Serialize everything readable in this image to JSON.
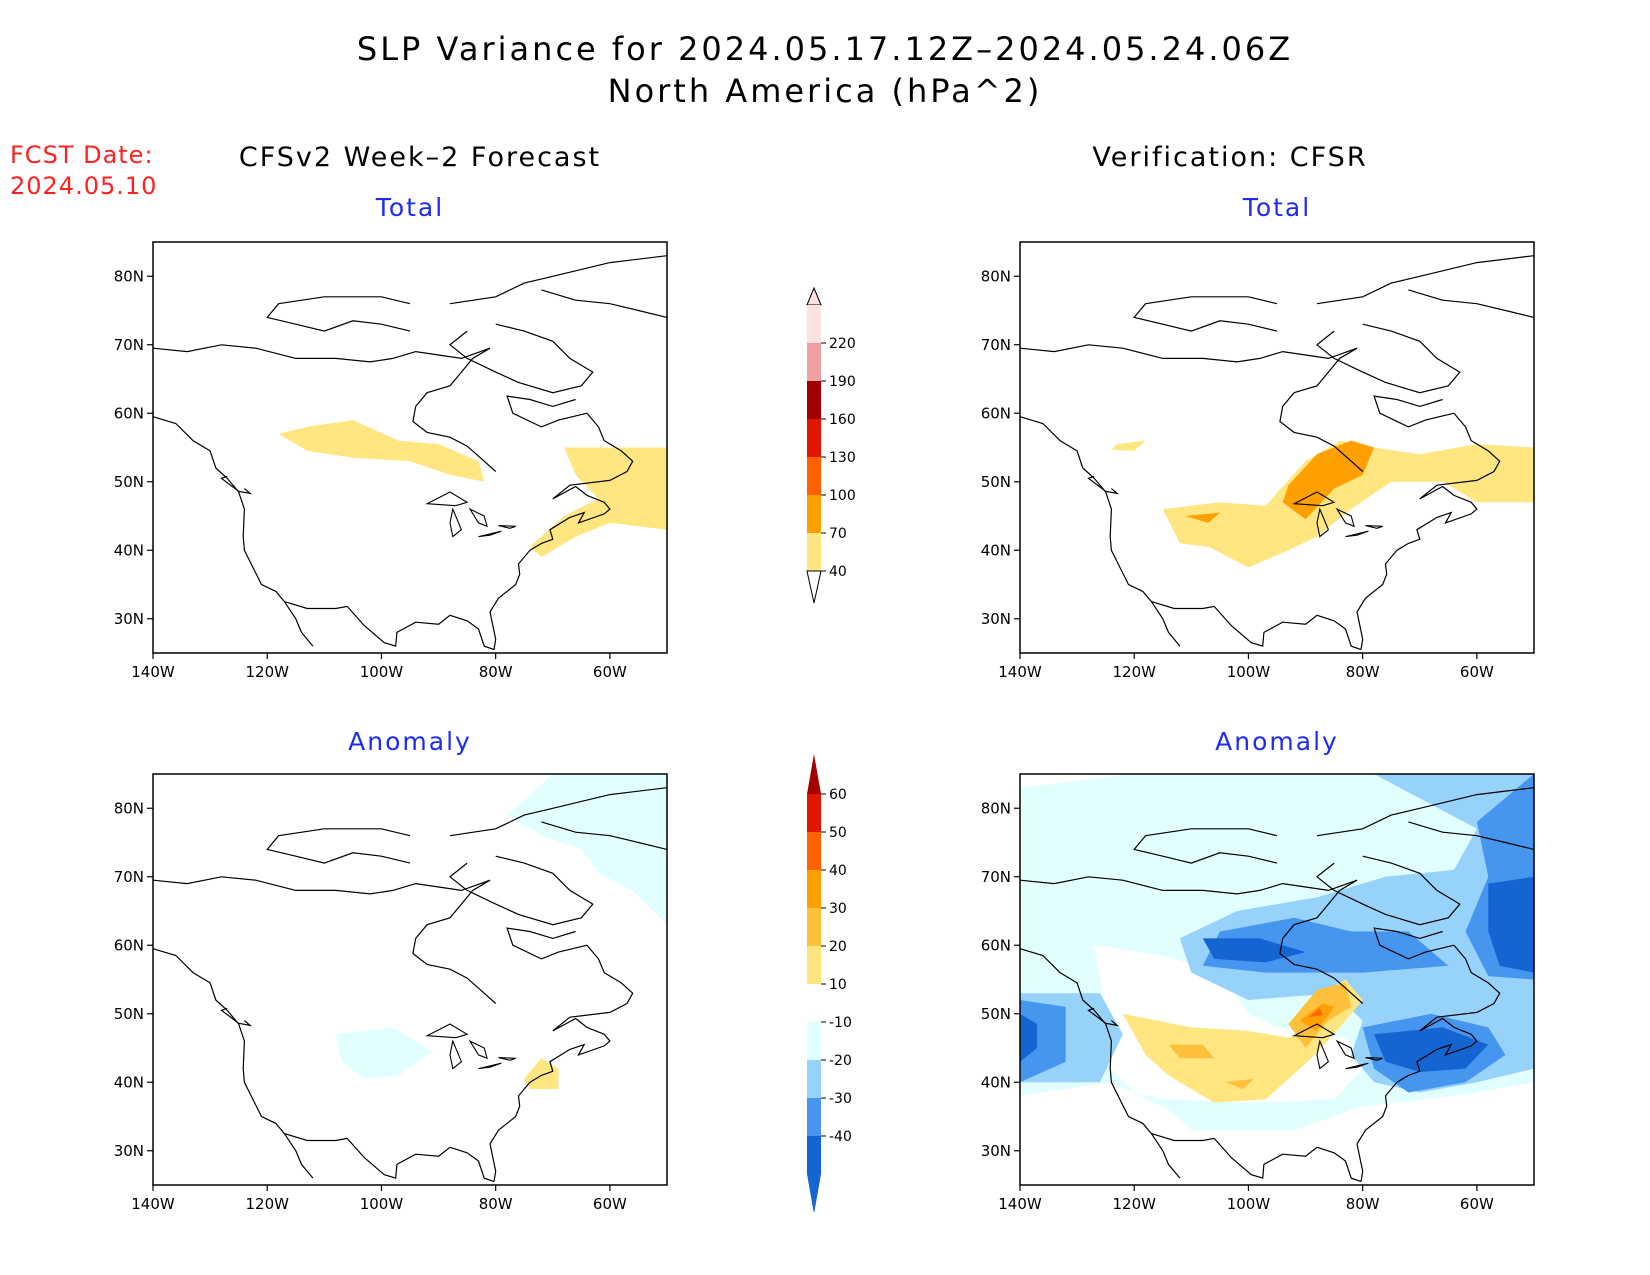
{
  "title": {
    "line1": "SLP Variance for 2024.05.17.12Z–2024.05.24.06Z",
    "line2": "North America (hPa^2)"
  },
  "fcst_date": {
    "label": "FCST Date:",
    "value": "2024.05.10"
  },
  "columns": {
    "left": "CFSv2 Week–2 Forecast",
    "right": "Verification: CFSR"
  },
  "panels": {
    "total": "Total",
    "anomaly": "Anomaly"
  },
  "axes": {
    "lat_labels": [
      "80N",
      "70N",
      "60N",
      "50N",
      "40N",
      "30N"
    ],
    "lon_labels": [
      "140W",
      "120W",
      "100W",
      "80W",
      "60W"
    ],
    "lat_range": [
      25,
      85
    ],
    "lon_range": [
      -140,
      -50
    ]
  },
  "legend_total": {
    "levels": [
      "40",
      "70",
      "100",
      "130",
      "160",
      "190",
      "220"
    ],
    "colors": [
      "#ffe680",
      "#ffa000",
      "#ff6000",
      "#e11600",
      "#a50000",
      "#f0a0a0",
      "#fde0e0"
    ]
  },
  "legend_anomaly": {
    "levels": [
      "-40",
      "-30",
      "-20",
      "-10",
      "10",
      "20",
      "30",
      "40",
      "50",
      "60"
    ],
    "colors": [
      "#1464d2",
      "#4696f0",
      "#96d2fa",
      "#e1ffff",
      "#ffffff",
      "#ffe680",
      "#ffc03c",
      "#ffa000",
      "#ff6000",
      "#e11600",
      "#a50000"
    ]
  }
}
